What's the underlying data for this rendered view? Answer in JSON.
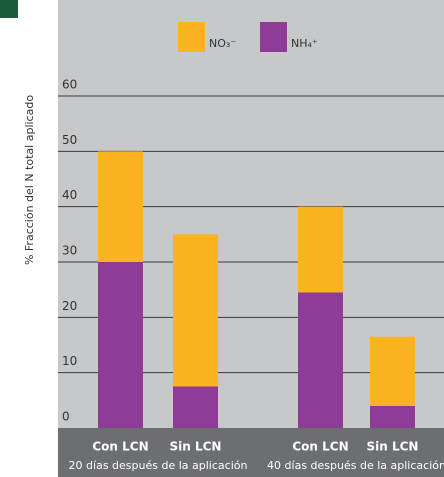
{
  "chart_data": {
    "type": "stacked-bar",
    "y_label": "% Fracción del N total aplicado",
    "categories": [
      "Con LCN",
      "Sin LCN",
      "Con LCN",
      "Sin LCN"
    ],
    "group_labels": [
      "20 días después de la aplicación",
      "40 días después de la aplicación"
    ],
    "series": [
      {
        "name": "NH₄⁺",
        "color": "#8e3c97",
        "values": [
          30,
          7.5,
          24.5,
          4
        ]
      },
      {
        "name": "NO₃⁻",
        "color": "#fbb320",
        "values": [
          20,
          27.5,
          15.5,
          12.5
        ]
      }
    ],
    "ylim": [
      0,
      60
    ],
    "yticks": [
      0,
      10,
      20,
      30,
      40,
      50,
      60
    ],
    "grid": true
  }
}
